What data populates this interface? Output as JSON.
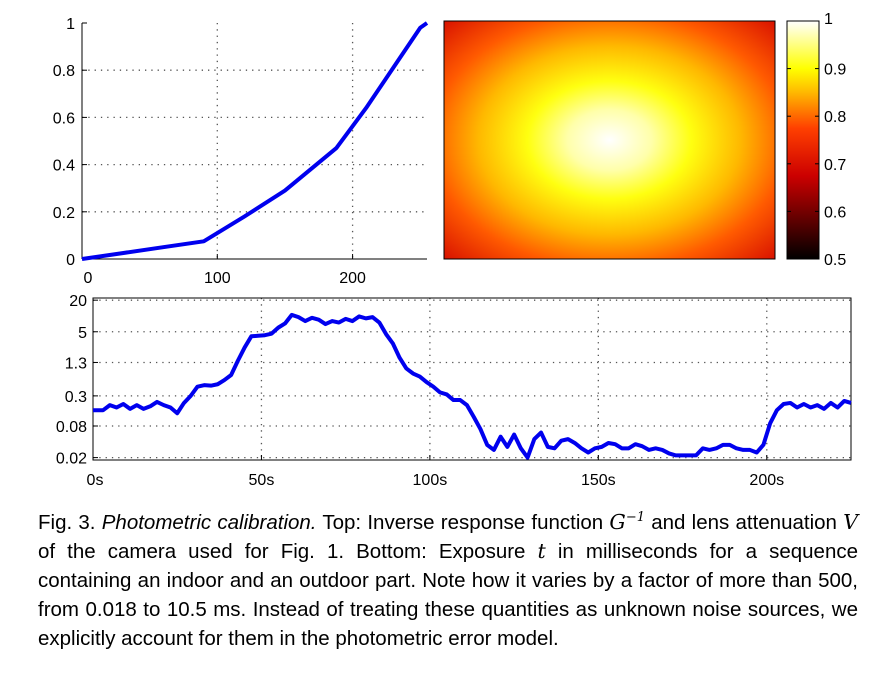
{
  "caption": {
    "label": "Fig. 3.",
    "title": "Photometric calibration.",
    "part1": "Top: Inverse response function",
    "g_symbol": "G",
    "g_exponent": "−1",
    "part2": "and lens attenuation",
    "v_symbol": "V",
    "part3": "of the camera used for Fig. 1. Bottom: Exposure",
    "t_symbol": "t",
    "part4": "in milliseconds for a sequence containing an indoor and an outdoor part. Note how it varies by a factor of more than 500, from 0.018 to 10.5 ms. Instead of treating these quantities as unknown noise sources, we explicitly account for them in the photometric error model."
  },
  "colors": {
    "line": "#0000ee",
    "grid": "#555555",
    "axis": "#000000",
    "colormap": "hot"
  },
  "chart_data": [
    {
      "type": "line",
      "title": "",
      "xlabel": "",
      "ylabel": "",
      "xlim": [
        0,
        255
      ],
      "ylim": [
        0,
        1
      ],
      "xticks": [
        "0",
        "100",
        "200"
      ],
      "yticks": [
        "0",
        "0.2",
        "0.4",
        "0.6",
        "0.8",
        "1"
      ],
      "grid": true,
      "series": [
        {
          "x": [
            0,
            30,
            60,
            90,
            120,
            150,
            188,
            210,
            230,
            250,
            255
          ],
          "y": [
            0,
            0.025,
            0.05,
            0.075,
            0.18,
            0.29,
            0.47,
            0.64,
            0.81,
            0.98,
            1.0
          ]
        }
      ]
    },
    {
      "type": "heatmap",
      "title": "",
      "colorbar_range": [
        0.5,
        1
      ],
      "colorbar_ticks": [
        "0.5",
        "0.6",
        "0.7",
        "0.8",
        "0.9",
        "1"
      ],
      "center_value": 1.0,
      "corner_value": 0.66
    },
    {
      "type": "line",
      "title": "",
      "xlabel": "",
      "ylabel": "",
      "xlim": [
        0,
        225
      ],
      "y_scale": "log",
      "ylim": [
        0.018,
        22
      ],
      "xticks": [
        "0s",
        "50s",
        "100s",
        "150s",
        "200s"
      ],
      "yticks": [
        "0.02",
        "0.08",
        "0.3",
        "1.3",
        "5",
        "20"
      ],
      "grid": true,
      "series": [
        {
          "x": [
            0,
            3,
            5,
            7,
            9,
            11,
            13,
            15,
            17,
            19,
            21,
            23,
            25,
            27,
            29,
            31,
            33,
            35,
            37,
            39,
            41,
            43,
            45,
            47,
            49,
            51,
            53,
            55,
            57,
            59,
            61,
            63,
            65,
            67,
            69,
            71,
            73,
            75,
            77,
            79,
            81,
            83,
            85,
            87,
            89,
            91,
            93,
            95,
            97,
            99,
            101,
            103,
            105,
            107,
            109,
            111,
            113,
            115,
            117,
            119,
            121,
            123,
            125,
            127,
            129,
            131,
            133,
            135,
            137,
            139,
            141,
            143,
            145,
            147,
            149,
            151,
            153,
            155,
            157,
            159,
            161,
            163,
            165,
            167,
            169,
            171,
            173,
            175,
            177,
            179,
            181,
            183,
            185,
            187,
            189,
            191,
            193,
            195,
            197,
            199,
            201,
            203,
            205,
            207,
            209,
            211,
            213,
            215,
            217,
            219,
            221,
            223,
            225
          ],
          "y": [
            0.16,
            0.16,
            0.2,
            0.18,
            0.21,
            0.17,
            0.2,
            0.17,
            0.19,
            0.23,
            0.2,
            0.18,
            0.14,
            0.22,
            0.3,
            0.45,
            0.48,
            0.47,
            0.5,
            0.6,
            0.75,
            1.4,
            2.5,
            4.1,
            4.2,
            4.3,
            4.6,
            6.0,
            7.2,
            10.5,
            9.5,
            8.0,
            9.2,
            8.5,
            7.0,
            8.0,
            7.5,
            8.8,
            8.0,
            9.8,
            9.0,
            9.5,
            7.5,
            4.5,
            3.0,
            1.6,
            1.0,
            0.8,
            0.7,
            0.55,
            0.45,
            0.35,
            0.32,
            0.25,
            0.25,
            0.2,
            0.12,
            0.07,
            0.035,
            0.028,
            0.05,
            0.032,
            0.055,
            0.03,
            0.02,
            0.045,
            0.06,
            0.032,
            0.03,
            0.042,
            0.045,
            0.038,
            0.03,
            0.025,
            0.03,
            0.032,
            0.038,
            0.036,
            0.03,
            0.03,
            0.036,
            0.033,
            0.028,
            0.03,
            0.028,
            0.024,
            0.022,
            0.022,
            0.022,
            0.022,
            0.03,
            0.028,
            0.03,
            0.035,
            0.035,
            0.03,
            0.028,
            0.028,
            0.025,
            0.035,
            0.09,
            0.16,
            0.21,
            0.22,
            0.18,
            0.21,
            0.18,
            0.2,
            0.17,
            0.22,
            0.18,
            0.24,
            0.22
          ]
        }
      ]
    }
  ]
}
